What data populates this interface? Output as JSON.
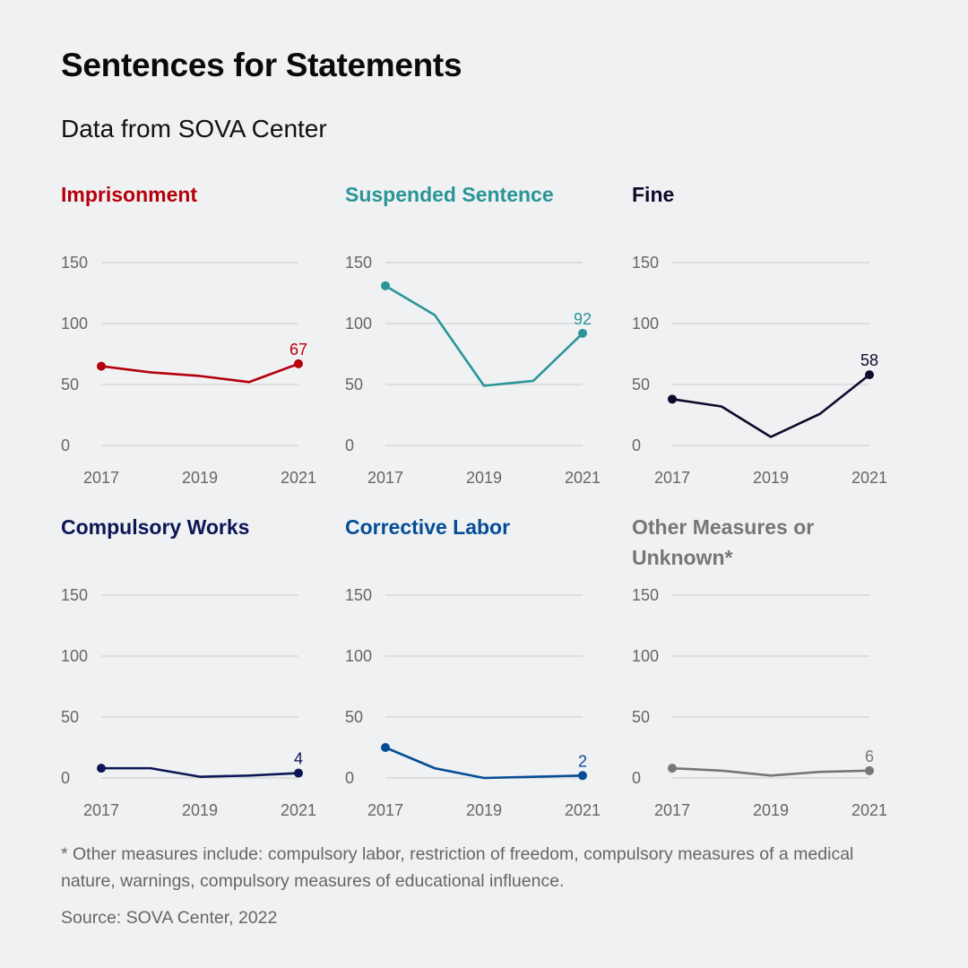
{
  "header": {
    "title": "Sentences for Statements",
    "subtitle": "Data from SOVA Center"
  },
  "footnote": "* Other measures include: compulsory labor, restriction of freedom, compulsory measures of a medical nature, warnings, compulsory measures of educational influence.",
  "source": "Source: SOVA Center, 2022",
  "chart_data": [
    {
      "type": "line",
      "title": "Imprisonment",
      "color": "#b5000c",
      "x": [
        2017,
        2018,
        2019,
        2020,
        2021
      ],
      "values": [
        65,
        60,
        57,
        52,
        67
      ],
      "end_label": "67",
      "xticks": [
        "2017",
        "2019",
        "2021"
      ],
      "yticks": [
        "0",
        "50",
        "100",
        "150"
      ],
      "ylim": [
        0,
        150
      ],
      "grid": true
    },
    {
      "type": "line",
      "title": "Suspended Sentence",
      "color": "#2a9597",
      "x": [
        2017,
        2018,
        2019,
        2020,
        2021
      ],
      "values": [
        131,
        107,
        49,
        53,
        92
      ],
      "end_label": "92",
      "xticks": [
        "2017",
        "2019",
        "2021"
      ],
      "yticks": [
        "0",
        "50",
        "100",
        "150"
      ],
      "ylim": [
        0,
        150
      ],
      "grid": true
    },
    {
      "type": "line",
      "title": "Fine",
      "color": "#0d0a2c",
      "x": [
        2017,
        2018,
        2019,
        2020,
        2021
      ],
      "values": [
        38,
        32,
        7,
        26,
        58
      ],
      "end_label": "58",
      "xticks": [
        "2017",
        "2019",
        "2021"
      ],
      "yticks": [
        "0",
        "50",
        "100",
        "150"
      ],
      "ylim": [
        0,
        150
      ],
      "grid": true
    },
    {
      "type": "line",
      "title": "Compulsory Works",
      "color": "#0c1655",
      "x": [
        2017,
        2018,
        2019,
        2020,
        2021
      ],
      "values": [
        8,
        8,
        1,
        2,
        4
      ],
      "end_label": "4",
      "xticks": [
        "2017",
        "2019",
        "2021"
      ],
      "yticks": [
        "0",
        "50",
        "100",
        "150"
      ],
      "ylim": [
        0,
        150
      ],
      "grid": true
    },
    {
      "type": "line",
      "title": "Corrective Labor",
      "color": "#054d96",
      "x": [
        2017,
        2018,
        2019,
        2020,
        2021
      ],
      "values": [
        25,
        8,
        0,
        1,
        2
      ],
      "end_label": "2",
      "xticks": [
        "2017",
        "2019",
        "2021"
      ],
      "yticks": [
        "0",
        "50",
        "100",
        "150"
      ],
      "ylim": [
        0,
        150
      ],
      "grid": true
    },
    {
      "type": "line",
      "title": "Other Measures or Unknown*",
      "color": "#767676",
      "x": [
        2017,
        2018,
        2019,
        2020,
        2021
      ],
      "values": [
        8,
        6,
        2,
        5,
        6
      ],
      "end_label": "6",
      "xticks": [
        "2017",
        "2019",
        "2021"
      ],
      "yticks": [
        "0",
        "50",
        "100",
        "150"
      ],
      "ylim": [
        0,
        150
      ],
      "grid": true
    }
  ]
}
